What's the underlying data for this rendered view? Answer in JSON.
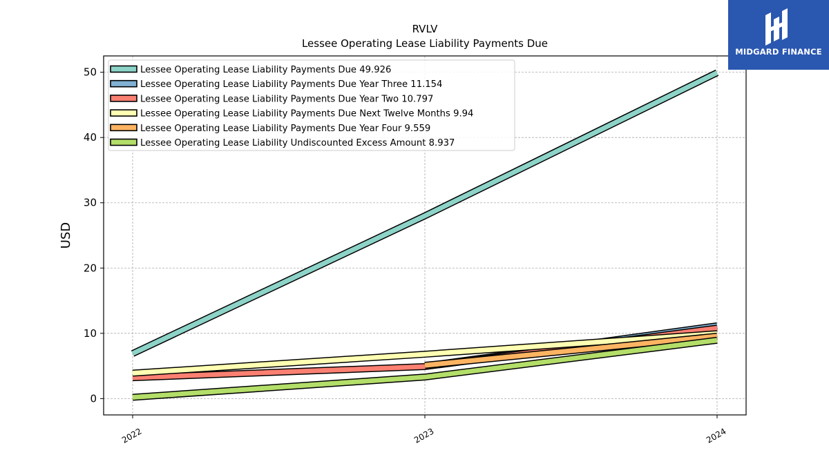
{
  "brand": {
    "name": "MIDGARD FINANCE",
    "bg_color": "#2a57b0"
  },
  "chart_data": {
    "type": "line",
    "title": "RVLV",
    "subtitle": "Lessee Operating Lease Liability Payments Due",
    "xlabel": "",
    "ylabel": "USD",
    "categories": [
      "2022",
      "2023",
      "2024"
    ],
    "ylim": [
      -2.5,
      52.5
    ],
    "yticks": [
      0,
      10,
      20,
      30,
      40,
      50
    ],
    "grid": true,
    "legend_position": "top-left",
    "series": [
      {
        "name": "Lessee Operating Lease Liability Payments Due",
        "legend_value": "49.926",
        "color": "#8dd3c7",
        "x": [
          "2022",
          "2023",
          "2024"
        ],
        "values": [
          6.9,
          28.0,
          49.926
        ]
      },
      {
        "name": "Lessee Operating Lease Liability Payments Due Year Three",
        "legend_value": "11.154",
        "color": "#80b1d3",
        "x": [
          "2023",
          "2024"
        ],
        "values": [
          5.0,
          11.154
        ]
      },
      {
        "name": "Lessee Operating Lease Liability Payments Due Year Two",
        "legend_value": "10.797",
        "color": "#fb8072",
        "x": [
          "2022",
          "2023",
          "2024"
        ],
        "values": [
          3.2,
          4.9,
          10.797
        ]
      },
      {
        "name": "Lessee Operating Lease Liability Payments Due Next Twelve Months",
        "legend_value": "9.94",
        "color": "#ffffb3",
        "x": [
          "2022",
          "2023",
          "2024"
        ],
        "values": [
          3.9,
          6.8,
          9.94
        ]
      },
      {
        "name": "Lessee Operating Lease Liability Payments Due Year Four",
        "legend_value": "9.559",
        "color": "#fdb462",
        "x": [
          "2023",
          "2024"
        ],
        "values": [
          5.1,
          9.559
        ]
      },
      {
        "name": "Lessee Operating Lease Liability Undiscounted Excess Amount",
        "legend_value": "8.937",
        "color": "#b3de69",
        "x": [
          "2022",
          "2023",
          "2024"
        ],
        "values": [
          0.2,
          3.3,
          8.937
        ]
      }
    ]
  }
}
